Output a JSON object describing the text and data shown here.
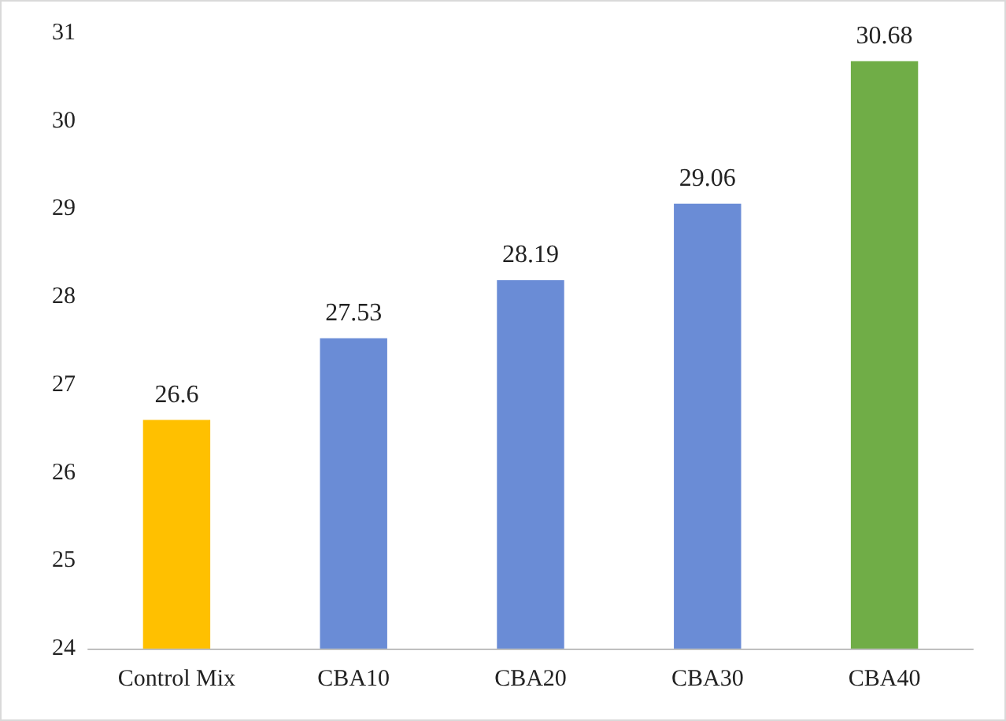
{
  "chart_data": {
    "type": "bar",
    "categories": [
      "Control Mix",
      "CBA10",
      "CBA20",
      "CBA30",
      "CBA40"
    ],
    "values": [
      26.6,
      27.53,
      28.19,
      29.06,
      30.68
    ],
    "colors": [
      "#ffc000",
      "#6a8cd6",
      "#6a8cd6",
      "#6a8cd6",
      "#70ad47"
    ],
    "ylim": [
      24,
      31
    ],
    "yticks": [
      24,
      25,
      26,
      27,
      28,
      29,
      30,
      31
    ],
    "data_labels": true
  }
}
